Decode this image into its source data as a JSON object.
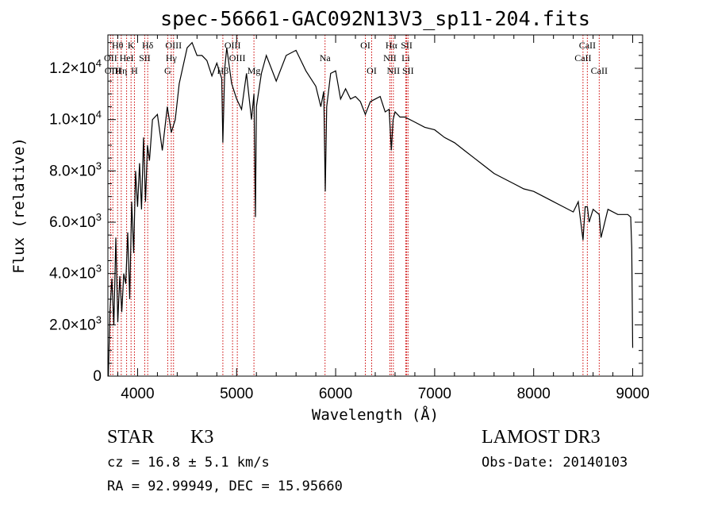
{
  "chart_data": {
    "type": "line",
    "title": "spec-56661-GAC092N13V3_sp11-204.fits",
    "xlabel": "Wavelength (Å)",
    "ylabel": "Flux (relative)",
    "xlim": [
      3700,
      9100
    ],
    "ylim": [
      0,
      13300
    ],
    "x_ticks": [
      4000,
      5000,
      6000,
      7000,
      8000,
      9000
    ],
    "x_tick_labels": [
      "4000",
      "5000",
      "6000",
      "7000",
      "8000",
      "9000"
    ],
    "y_ticks": [
      0,
      2000,
      4000,
      6000,
      8000,
      10000,
      12000
    ],
    "y_tick_labels": [
      {
        "mant": "0",
        "exp": ""
      },
      {
        "mant": "2.0×10",
        "exp": "3"
      },
      {
        "mant": "4.0×10",
        "exp": "3"
      },
      {
        "mant": "6.0×10",
        "exp": "3"
      },
      {
        "mant": "8.0×10",
        "exp": "3"
      },
      {
        "mant": "1.0×10",
        "exp": "4"
      },
      {
        "mant": "1.2×10",
        "exp": "4"
      }
    ],
    "series": [
      {
        "name": "flux",
        "x": [
          3705,
          3720,
          3740,
          3760,
          3780,
          3800,
          3820,
          3840,
          3860,
          3880,
          3900,
          3920,
          3940,
          3960,
          3980,
          4000,
          4020,
          4040,
          4060,
          4080,
          4100,
          4120,
          4150,
          4200,
          4250,
          4300,
          4340,
          4380,
          4420,
          4460,
          4500,
          4550,
          4600,
          4650,
          4700,
          4750,
          4800,
          4850,
          4861,
          4880,
          4900,
          4950,
          5000,
          5050,
          5100,
          5150,
          5175,
          5190,
          5200,
          5250,
          5300,
          5400,
          5500,
          5600,
          5700,
          5800,
          5850,
          5880,
          5895,
          5910,
          5950,
          6000,
          6050,
          6100,
          6150,
          6200,
          6250,
          6300,
          6350,
          6400,
          6450,
          6500,
          6540,
          6563,
          6580,
          6600,
          6650,
          6700,
          6800,
          6900,
          7000,
          7100,
          7200,
          7300,
          7400,
          7500,
          7600,
          7700,
          7800,
          7900,
          8000,
          8100,
          8200,
          8300,
          8400,
          8450,
          8498,
          8520,
          8542,
          8560,
          8600,
          8662,
          8680,
          8750,
          8850,
          8950,
          8980,
          8990,
          9000
        ],
        "y": [
          0,
          2500,
          3800,
          2000,
          5400,
          2100,
          3900,
          2500,
          4000,
          3600,
          5600,
          3000,
          6800,
          4800,
          8000,
          6600,
          8300,
          6500,
          9300,
          6800,
          9000,
          8400,
          10000,
          10200,
          8800,
          10500,
          9500,
          10000,
          11400,
          12100,
          12800,
          13000,
          12500,
          12500,
          12300,
          11700,
          12200,
          11600,
          9100,
          12000,
          12800,
          11400,
          10800,
          10400,
          11800,
          10000,
          11000,
          6200,
          10500,
          11800,
          12500,
          11500,
          12500,
          12700,
          11900,
          11300,
          10500,
          11100,
          7200,
          10500,
          11800,
          11900,
          10800,
          11200,
          10800,
          10900,
          10700,
          10200,
          10700,
          10800,
          10900,
          10300,
          10400,
          8800,
          10000,
          10300,
          10100,
          10100,
          9900,
          9700,
          9600,
          9300,
          9100,
          8800,
          8500,
          8200,
          7900,
          7700,
          7500,
          7300,
          7200,
          7000,
          6800,
          6600,
          6400,
          6800,
          5300,
          6600,
          6600,
          6000,
          6500,
          6300,
          5400,
          6500,
          6300,
          6300,
          6200,
          5000,
          1100
        ]
      }
    ],
    "lines": [
      {
        "label": "Hθ",
        "wave": 3798,
        "row": 0
      },
      {
        "label": "K",
        "wave": 3934,
        "row": 0
      },
      {
        "label": "Hδ",
        "wave": 4102,
        "row": 0
      },
      {
        "label": "OIII",
        "wave": 4363,
        "row": 0
      },
      {
        "label": "OIII",
        "wave": 4959,
        "row": 0
      },
      {
        "label": "Na",
        "wave": 5893,
        "row": 1
      },
      {
        "label": "OI",
        "wave": 6300,
        "row": 0
      },
      {
        "label": "Hα",
        "wave": 6563,
        "row": 0
      },
      {
        "label": "SII",
        "wave": 6717,
        "row": 0
      },
      {
        "label": "CaII",
        "wave": 8542,
        "row": 0
      },
      {
        "label": "OII",
        "wave": 3727,
        "row": 1
      },
      {
        "label": "HeI",
        "wave": 3889,
        "row": 1
      },
      {
        "label": "SII",
        "wave": 4072,
        "row": 1
      },
      {
        "label": "Hγ",
        "wave": 4340,
        "row": 1
      },
      {
        "label": "OIII",
        "wave": 5007,
        "row": 1
      },
      {
        "label": "NII",
        "wave": 6548,
        "row": 1
      },
      {
        "label": "Li",
        "wave": 6708,
        "row": 1
      },
      {
        "label": "CaII",
        "wave": 8498,
        "row": 1
      },
      {
        "label": "OIII",
        "wave": 3750,
        "row": 2
      },
      {
        "label": "Hη",
        "wave": 3835,
        "row": 2
      },
      {
        "label": "H",
        "wave": 3968,
        "row": 2
      },
      {
        "label": "G",
        "wave": 4304,
        "row": 2
      },
      {
        "label": "Hβ",
        "wave": 4861,
        "row": 2
      },
      {
        "label": "Mg",
        "wave": 5175,
        "row": 2
      },
      {
        "label": "OI",
        "wave": 6364,
        "row": 2
      },
      {
        "label": "NII",
        "wave": 6583,
        "row": 2
      },
      {
        "label": "SII",
        "wave": 6731,
        "row": 2
      },
      {
        "label": "CaII",
        "wave": 8662,
        "row": 2
      }
    ]
  },
  "info": {
    "class": "STAR",
    "subclass": "K3",
    "survey": "LAMOST DR3",
    "cz": "cz = 16.8 ± 5.1 km/s",
    "obs_date": "Obs-Date: 20140103",
    "radec": "RA =  92.99949, DEC =  15.95660"
  }
}
